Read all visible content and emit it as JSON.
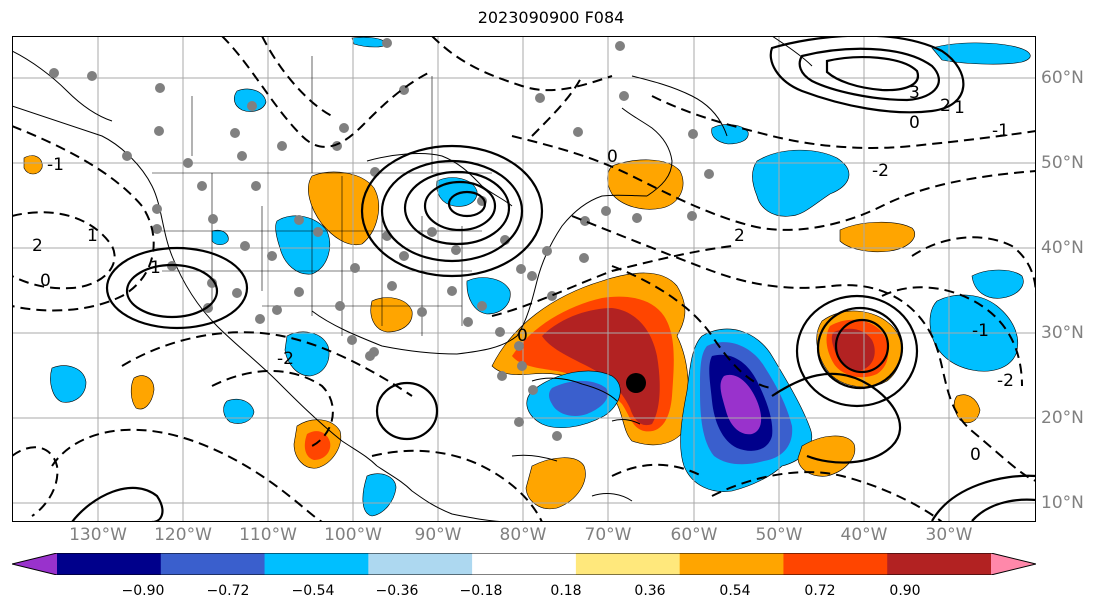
{
  "title": "2023090900 F084",
  "map": {
    "region": "North Atlantic / North America",
    "lon_labels": [
      "130°W",
      "120°W",
      "110°W",
      "100°W",
      "90°W",
      "80°W",
      "70°W",
      "60°W",
      "50°W",
      "40°W",
      "30°W"
    ],
    "lat_labels": [
      "60°N",
      "50°N",
      "40°N",
      "30°N",
      "20°N",
      "10°N"
    ],
    "contour_labels": [
      "3",
      "2",
      "1",
      "0",
      "-1",
      "-2",
      "0",
      "2",
      "1",
      "-1",
      "0",
      "-2",
      "2",
      "-1",
      "0",
      "1",
      "0",
      "-2"
    ],
    "storm_marker": "black-dot",
    "station_marker": "gray-dot"
  },
  "colorbar": {
    "ticks": [
      "−0.90",
      "−0.72",
      "−0.54",
      "−0.36",
      "−0.18",
      "0.18",
      "0.36",
      "0.54",
      "0.72",
      "0.90"
    ],
    "colors": [
      "#9932cc",
      "#00008b",
      "#3a5fcd",
      "#00bfff",
      "#add8f0",
      "#ffffff",
      "#ffe87c",
      "#ffa500",
      "#ff4500",
      "#b22222",
      "#ff88aa"
    ],
    "extend": "both"
  }
}
